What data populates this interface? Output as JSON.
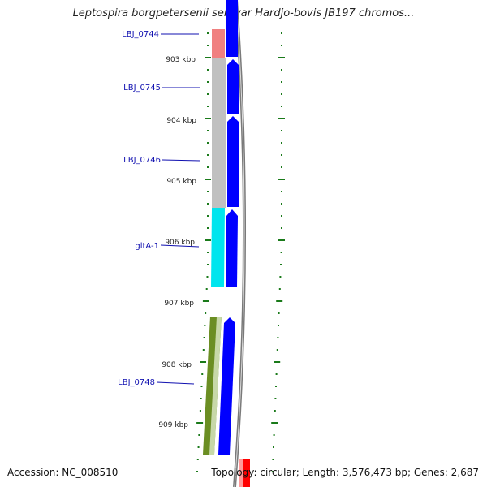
{
  "title": "Leptospira borgpetersenii serovar Hardjo-bovis JB197 chromos...",
  "footer": {
    "accession": "Accession: NC_008510",
    "summary": "Topology: circular; Length: 3,576,473 bp; Genes: 2,687"
  },
  "kbp_ticks": [
    "903 kbp",
    "904 kbp",
    "905 kbp",
    "906 kbp",
    "907 kbp",
    "908 kbp",
    "909 kbp"
  ],
  "genes": [
    {
      "label": "LBJ_0744",
      "color": "#f08080"
    },
    {
      "label": "LBJ_0745",
      "color": "#c0c0c0"
    },
    {
      "label": "LBJ_0746",
      "color": "#c0c0c0"
    },
    {
      "label": "gltA-1",
      "color": "#00e5ee"
    },
    {
      "label": "LBJ_0748",
      "color": "#6b8e23"
    }
  ],
  "colors": {
    "cds_strand": "#0000ff",
    "backbone": "#808080",
    "tick": "#1a7a1a",
    "label": "#1010b0",
    "highlight": "#ff0000"
  }
}
